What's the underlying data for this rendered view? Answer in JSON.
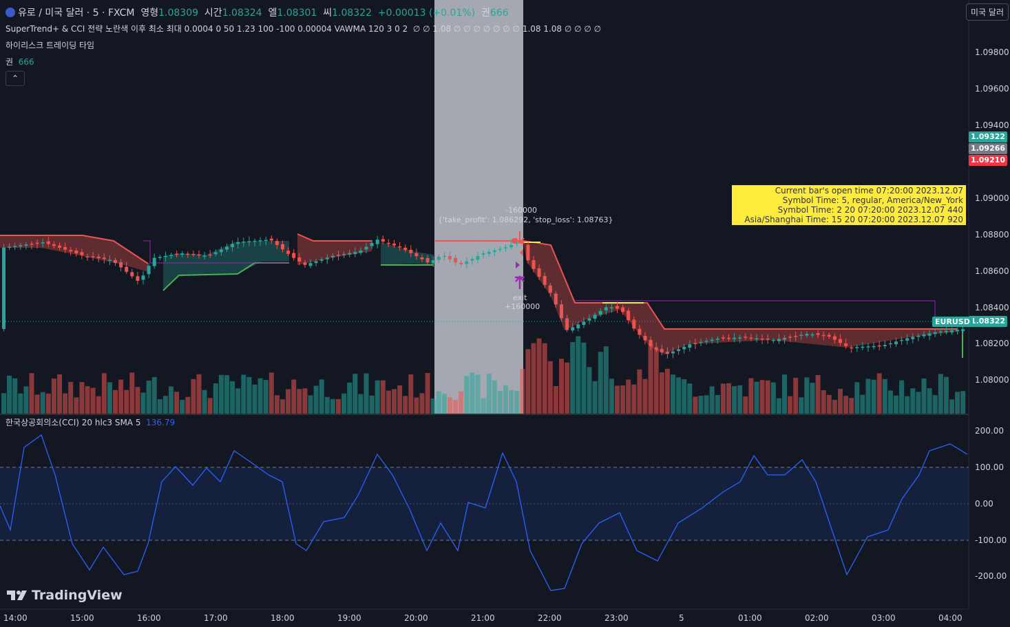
{
  "header": {
    "symbol_title": "유로 / 미국 달러 · 5 · FXCM",
    "open_label": "영형",
    "open_value": "1.08309",
    "high_label": "시간",
    "high_value": "1.08324",
    "low_label": "엘",
    "low_value": "1.08301",
    "close_label": "씨",
    "close_value": "1.08322",
    "change": "+0.00013 (+0.01%)",
    "vol_label": "권",
    "vol_value": "666"
  },
  "indicators": {
    "strategy_line": "SuperTrend+ & CCI 전략 노란색 이후 최소 최대 0.0004 0 50 1.23 100 -100 0.00004 VAWMA 120 3 0 2",
    "strategy_values": "∅ ∅ 1.08 ∅ ∅ ∅ ∅ ∅ ∅ ∅ 1.08 1.08 ∅ ∅ ∅ ∅",
    "session_line": "하이리스크 트레이딩 타임",
    "volume_label": "권",
    "volume_value": "666",
    "cci_label": "한국상공회의소(CCI) 20 hlc3 SMA 5",
    "cci_value": "136.79"
  },
  "currency_button": "미국 달러",
  "price_axis": [
    "1.09800",
    "1.09600",
    "1.09400",
    "1.09000",
    "1.08800",
    "1.08600",
    "1.08400",
    "1.08200",
    "1.08000"
  ],
  "price_labels": {
    "high": "1.09322",
    "mid": "1.09266",
    "low": "1.09210",
    "last": "1.08322",
    "symbol_tag": "EURUSD"
  },
  "cci_axis": [
    "200.00",
    "100.00",
    "0.00",
    "-100.00",
    "-200.00"
  ],
  "time_axis": [
    "14:00",
    "15:00",
    "16:00",
    "17:00",
    "18:00",
    "19:00",
    "20:00",
    "21:00",
    "22:00",
    "23:00",
    "5",
    "01:00",
    "02:00",
    "03:00",
    "04:00"
  ],
  "info_box": [
    "Current bar's open time 07:20:00 2023.12.07",
    "Symbol Time: 5, regular, America/New_York",
    "Symbol Time: 2 20 07:20:00 2023.12.07 440",
    "Asia/Shanghai Time: 15 20 07:20:00 2023.12.07 920"
  ],
  "trade_annotations": {
    "entry_qty": "-160000",
    "entry_params": "{'take_profit': 1.086292, 'stop_loss': 1.08763}",
    "exit_label": "exit",
    "exit_qty": "+160000"
  },
  "brand": "TradingView",
  "colors": {
    "bg": "#131722",
    "up": "#26a69a",
    "down": "#ef5350",
    "cci": "#2962ff",
    "session": "#b2b5be",
    "supertrend_up": "#4caf50",
    "supertrend_down": "#ef5350",
    "yellow": "#ffeb3b"
  }
}
